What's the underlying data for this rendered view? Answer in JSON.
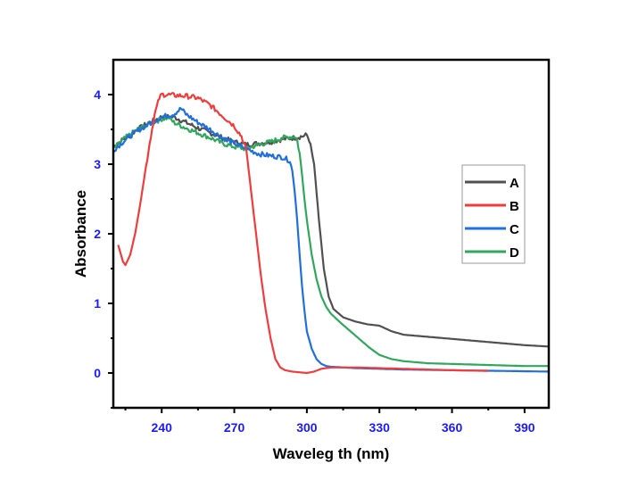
{
  "chart_data": {
    "type": "line",
    "title": "",
    "xlabel": "Waveleg th (nm)",
    "ylabel": "Absorbance",
    "xlim": [
      220,
      400
    ],
    "ylim": [
      -0.5,
      4.5
    ],
    "xticks": [
      240,
      270,
      300,
      330,
      360,
      390
    ],
    "xtick_labels": [
      "240",
      "270",
      "300",
      "330",
      "360",
      "390"
    ],
    "yticks": [
      0,
      1,
      2,
      3,
      4
    ],
    "ytick_labels": [
      "0",
      "1",
      "2",
      "3",
      "4"
    ],
    "grid": false,
    "legend_position": "center-right",
    "series": [
      {
        "name": "A",
        "color": "#505050",
        "x": [
          220,
          225,
          230,
          235,
          240,
          245,
          250,
          255,
          260,
          265,
          270,
          275,
          280,
          285,
          290,
          295,
          298,
          300,
          301,
          303,
          305,
          307,
          309,
          311,
          315,
          320,
          325,
          330,
          335,
          340,
          350,
          360,
          370,
          380,
          390,
          400
        ],
        "y": [
          3.25,
          3.38,
          3.5,
          3.6,
          3.68,
          3.68,
          3.6,
          3.52,
          3.45,
          3.38,
          3.32,
          3.28,
          3.3,
          3.32,
          3.36,
          3.38,
          3.4,
          3.42,
          3.35,
          3.0,
          2.2,
          1.5,
          1.1,
          0.92,
          0.8,
          0.74,
          0.7,
          0.68,
          0.6,
          0.55,
          0.52,
          0.49,
          0.46,
          0.43,
          0.4,
          0.38
        ]
      },
      {
        "name": "B",
        "color": "#f03c3c",
        "x": [
          222,
          224,
          225,
          227,
          229,
          231,
          233,
          235,
          237,
          239,
          240,
          242,
          245,
          250,
          255,
          260,
          265,
          270,
          273,
          275,
          277,
          279,
          281,
          283,
          285,
          287,
          289,
          291,
          294,
          297,
          300,
          303,
          306,
          310,
          320,
          330,
          340,
          350,
          360,
          375
        ],
        "y": [
          1.84,
          1.6,
          1.55,
          1.7,
          2.0,
          2.4,
          2.85,
          3.3,
          3.7,
          3.95,
          4.0,
          4.0,
          3.99,
          3.98,
          3.95,
          3.85,
          3.7,
          3.55,
          3.4,
          3.2,
          2.6,
          2.0,
          1.4,
          0.9,
          0.5,
          0.2,
          0.08,
          0.04,
          0.02,
          0.01,
          0.0,
          0.02,
          0.06,
          0.08,
          0.08,
          0.07,
          0.06,
          0.05,
          0.04,
          0.03
        ]
      },
      {
        "name": "C",
        "color": "#1f6fe0",
        "x": [
          220,
          225,
          230,
          235,
          240,
          245,
          248,
          250,
          255,
          260,
          265,
          270,
          275,
          280,
          285,
          290,
          293,
          294,
          295,
          296,
          297,
          298,
          299,
          300,
          302,
          304,
          306,
          308,
          310,
          315,
          320,
          330,
          340,
          360,
          380,
          400
        ],
        "y": [
          3.2,
          3.35,
          3.48,
          3.58,
          3.68,
          3.72,
          3.8,
          3.72,
          3.6,
          3.5,
          3.38,
          3.3,
          3.22,
          3.15,
          3.12,
          3.1,
          3.05,
          2.9,
          2.6,
          2.2,
          1.7,
          1.25,
          0.9,
          0.6,
          0.35,
          0.2,
          0.13,
          0.1,
          0.09,
          0.08,
          0.07,
          0.06,
          0.05,
          0.04,
          0.03,
          0.02
        ]
      },
      {
        "name": "D",
        "color": "#2fa85c",
        "x": [
          220,
          225,
          230,
          235,
          240,
          243,
          245,
          250,
          255,
          260,
          265,
          270,
          275,
          280,
          285,
          290,
          295,
          296,
          297,
          298,
          299,
          300,
          302,
          304,
          306,
          308,
          310,
          314,
          318,
          322,
          326,
          330,
          335,
          340,
          350,
          360,
          370,
          380,
          390,
          400
        ],
        "y": [
          3.22,
          3.38,
          3.5,
          3.58,
          3.65,
          3.67,
          3.6,
          3.52,
          3.45,
          3.38,
          3.3,
          3.25,
          3.22,
          3.28,
          3.32,
          3.38,
          3.4,
          3.35,
          3.15,
          2.85,
          2.5,
          2.2,
          1.7,
          1.35,
          1.1,
          0.95,
          0.85,
          0.72,
          0.6,
          0.48,
          0.36,
          0.26,
          0.2,
          0.17,
          0.14,
          0.13,
          0.12,
          0.11,
          0.1,
          0.1
        ]
      }
    ]
  }
}
